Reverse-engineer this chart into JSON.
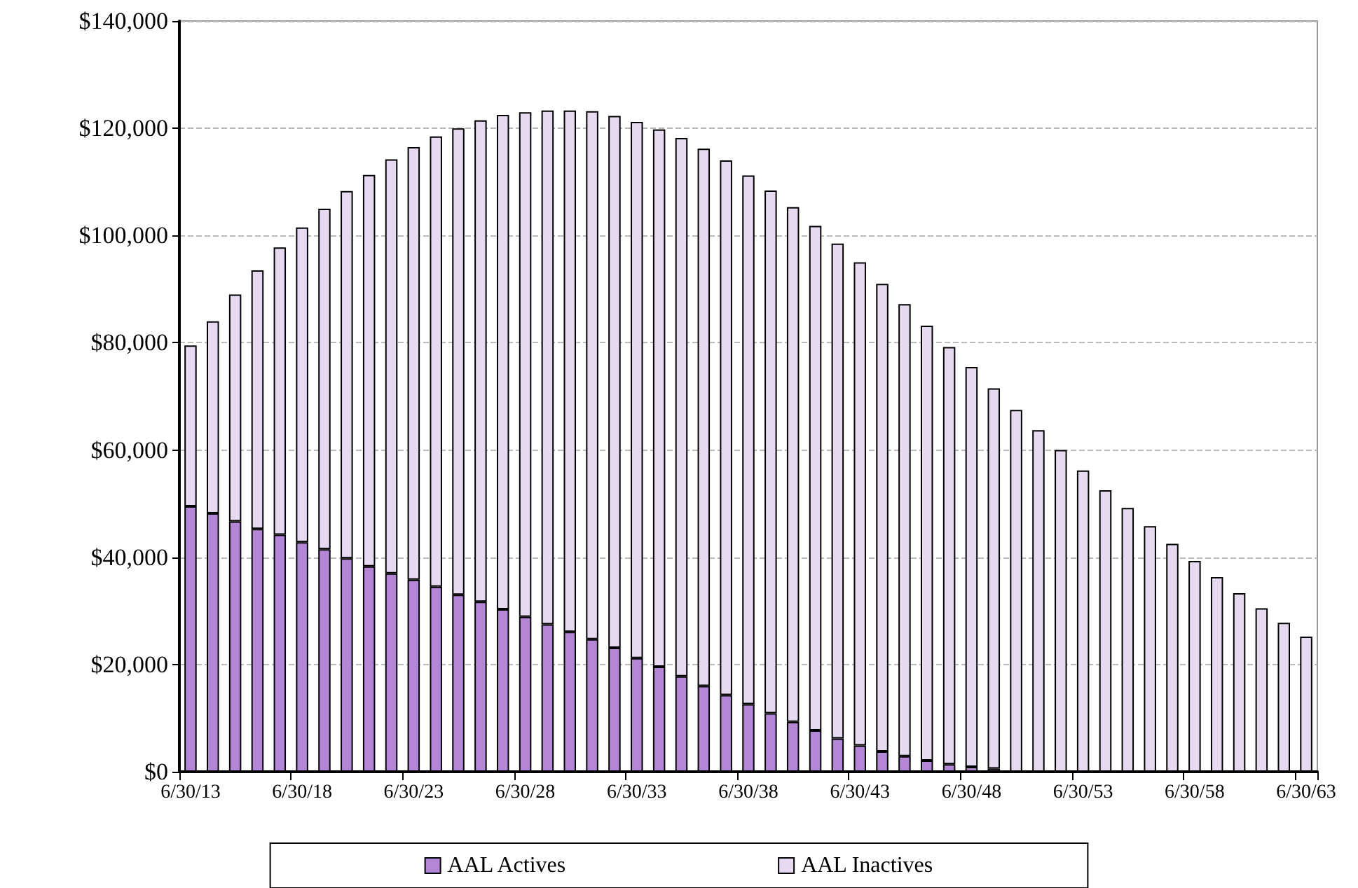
{
  "chart_data": {
    "type": "bar",
    "stacked": true,
    "categories": [
      "6/30/13",
      null,
      null,
      null,
      null,
      "6/30/18",
      null,
      null,
      null,
      null,
      "6/30/23",
      null,
      null,
      null,
      null,
      "6/30/28",
      null,
      null,
      null,
      null,
      "6/30/33",
      null,
      null,
      null,
      null,
      "6/30/38",
      null,
      null,
      null,
      null,
      "6/30/43",
      null,
      null,
      null,
      null,
      "6/30/48",
      null,
      null,
      null,
      null,
      "6/30/53",
      null,
      null,
      null,
      null,
      "6/30/58",
      null,
      null,
      null,
      null,
      "6/30/63"
    ],
    "series": [
      {
        "name": "AAL Actives",
        "color": "#b387d6",
        "values": [
          49500,
          48200,
          46700,
          45300,
          44200,
          42800,
          41500,
          39800,
          38300,
          37000,
          35800,
          34500,
          33000,
          31700,
          30300,
          28900,
          27500,
          26100,
          24700,
          23100,
          21200,
          19600,
          17800,
          16000,
          14300,
          12600,
          10900,
          9300,
          7700,
          6200,
          4900,
          3800,
          2900,
          2100,
          1400,
          900,
          600,
          null,
          null,
          null,
          null,
          null,
          0,
          0,
          0,
          0,
          0,
          0,
          0,
          0,
          0
        ]
      },
      {
        "name": "AAL Inactives",
        "color": "#e6daf0",
        "values": [
          30000,
          35800,
          42300,
          48200,
          53600,
          58700,
          63500,
          68500,
          73000,
          77200,
          80700,
          84000,
          87000,
          89800,
          92200,
          94100,
          95800,
          97200,
          98500,
          99200,
          100000,
          100200,
          100400,
          100200,
          99700,
          98600,
          97500,
          96000,
          94100,
          92300,
          90100,
          87200,
          84300,
          81100,
          77800,
          74600,
          70900,
          67500,
          63700,
          60000,
          56200,
          52500,
          49200,
          45800,
          42500,
          39300,
          36300,
          33300,
          30500,
          27800,
          25200
        ]
      }
    ],
    "ylim": [
      0,
      140000
    ],
    "yticks": [
      {
        "value": 0,
        "label": "$0"
      },
      {
        "value": 20000,
        "label": "$20,000"
      },
      {
        "value": 40000,
        "label": "$40,000"
      },
      {
        "value": 60000,
        "label": "$60,000"
      },
      {
        "value": 80000,
        "label": "$80,000"
      },
      {
        "value": 100000,
        "label": "$100,000"
      },
      {
        "value": 120000,
        "label": "$120,000"
      },
      {
        "value": 140000,
        "label": "$140,000"
      }
    ],
    "grid": "y",
    "legend": "bottom"
  }
}
